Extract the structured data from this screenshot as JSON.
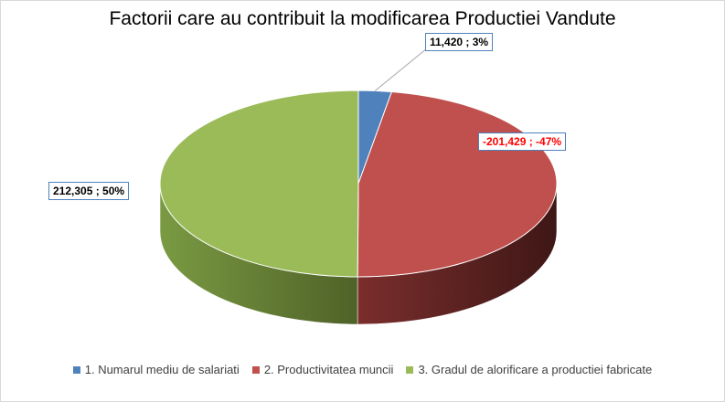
{
  "chart_data": {
    "type": "pie",
    "title": "Factorii care au contribuit la modificarea Productiei Vandute",
    "categories": [
      "1. Numarul mediu de salariati",
      "2. Productivitatea muncii",
      "3. Gradul de alorificare a productiei fabricate"
    ],
    "values": [
      11420,
      -201429,
      212305
    ],
    "percentages": [
      3,
      -47,
      50
    ],
    "data_labels": [
      "11,420  ; 3%",
      "-201,429  ; -47%",
      "212,305  ; 50%"
    ],
    "colors": [
      "#4f81bd",
      "#c0504d",
      "#9bbb59"
    ],
    "side_colors": [
      "#2c4d75",
      "#632523",
      "#4f6228"
    ],
    "label_colors": [
      "#000000",
      "#ff0000",
      "#000000"
    ],
    "legend_position": "bottom",
    "style": "3d"
  }
}
